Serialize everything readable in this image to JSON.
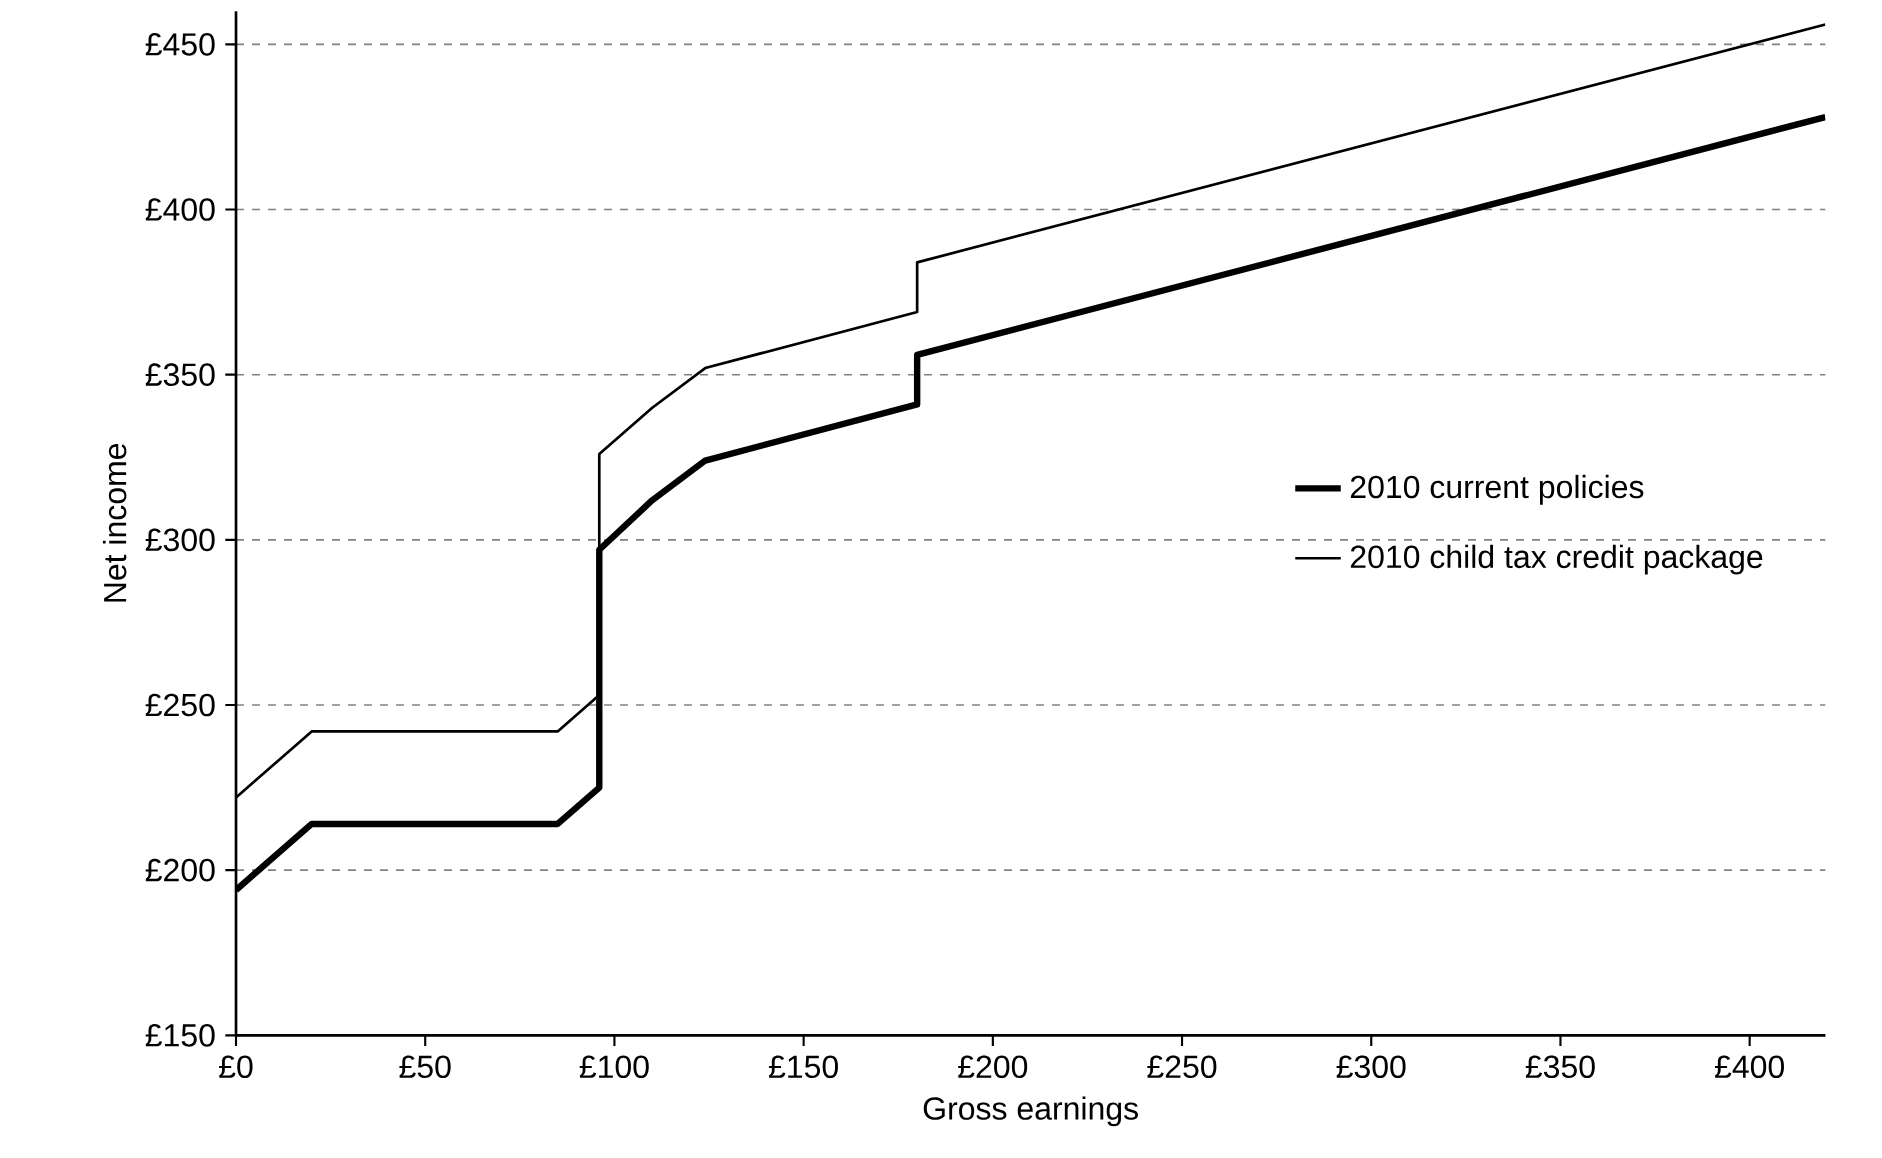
{
  "chart_data": {
    "type": "line",
    "xlabel": "Gross earnings",
    "ylabel": "Net income",
    "xlim": [
      0,
      420
    ],
    "ylim": [
      150,
      460
    ],
    "xticks": [
      {
        "value": 0,
        "label": "£0"
      },
      {
        "value": 50,
        "label": "£50"
      },
      {
        "value": 100,
        "label": "£100"
      },
      {
        "value": 150,
        "label": "£150"
      },
      {
        "value": 200,
        "label": "£200"
      },
      {
        "value": 250,
        "label": "£250"
      },
      {
        "value": 300,
        "label": "£300"
      },
      {
        "value": 350,
        "label": "£350"
      },
      {
        "value": 400,
        "label": "£400"
      }
    ],
    "yticks": [
      {
        "value": 150,
        "label": "£150"
      },
      {
        "value": 200,
        "label": "£200"
      },
      {
        "value": 250,
        "label": "£250"
      },
      {
        "value": 300,
        "label": "£300"
      },
      {
        "value": 350,
        "label": "£350"
      },
      {
        "value": 400,
        "label": "£400"
      },
      {
        "value": 450,
        "label": "£450"
      }
    ],
    "grid": "y",
    "legend": "right",
    "marker": "none",
    "line_style": "solid",
    "series": [
      {
        "name": "2010 current policies",
        "color": "#000000",
        "x": [
          0,
          20,
          85,
          96,
          96,
          110,
          124,
          180,
          180,
          420
        ],
        "values": [
          194,
          214,
          214,
          225,
          297,
          312,
          324,
          341,
          356,
          428
        ]
      },
      {
        "name": "2010 child tax credit package",
        "color": "#000000",
        "x": [
          0,
          20,
          85,
          96,
          96,
          110,
          124,
          180,
          180,
          420
        ],
        "values": [
          222,
          242,
          242,
          253,
          326,
          340,
          352,
          369,
          384,
          456
        ]
      }
    ]
  }
}
